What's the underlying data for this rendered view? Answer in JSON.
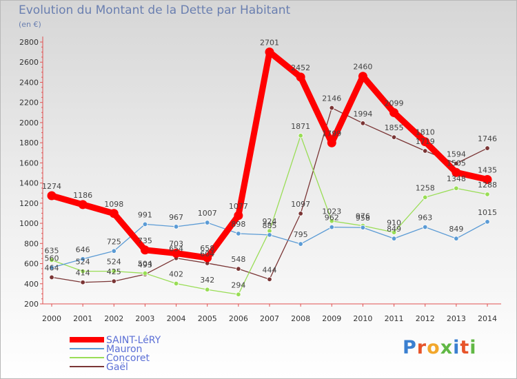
{
  "chart_data": {
    "type": "line",
    "title": "Evolution du Montant de la Dette par Habitant",
    "subtitle": "(en €)",
    "x": [
      2000,
      2001,
      2002,
      2003,
      2004,
      2005,
      2006,
      2007,
      2008,
      2009,
      2010,
      2011,
      2012,
      2013,
      2014
    ],
    "ylim": [
      200,
      2800
    ],
    "yticks": [
      200,
      400,
      600,
      800,
      1000,
      1200,
      1400,
      1600,
      1800,
      2000,
      2200,
      2400,
      2600,
      2800
    ],
    "grid": false,
    "legend_position": "bottom-left",
    "series": [
      {
        "name": "SAINT-LéRY",
        "color": "#ff0000",
        "values": [
          1274,
          1186,
          1098,
          735,
          703,
          658,
          1077,
          2701,
          2452,
          1799,
          2460,
          2099,
          1810,
          1505,
          1435
        ]
      },
      {
        "name": "Mauron",
        "color": "#5b9bd5",
        "values": [
          560,
          646,
          725,
          991,
          967,
          1007,
          898,
          885,
          795,
          962,
          958,
          849,
          963,
          849,
          1015
        ]
      },
      {
        "name": "Concoret",
        "color": "#99dd55",
        "values": [
          635,
          524,
          524,
          504,
          402,
          342,
          294,
          924,
          1871,
          1023,
          976,
          910,
          1258,
          1348,
          1288
        ]
      },
      {
        "name": "Gaël",
        "color": "#7a3535",
        "values": [
          464,
          414,
          425,
          493,
          654,
          604,
          548,
          444,
          1097,
          2146,
          1994,
          1855,
          1719,
          1594,
          1746
        ]
      }
    ]
  },
  "logo": {
    "text": "Proxiti",
    "letter_colors": [
      "#3a7fd0",
      "#e7542a",
      "#f2a72c",
      "#61b845",
      "#3a7fd0",
      "#e7542a",
      "#61b845"
    ]
  }
}
